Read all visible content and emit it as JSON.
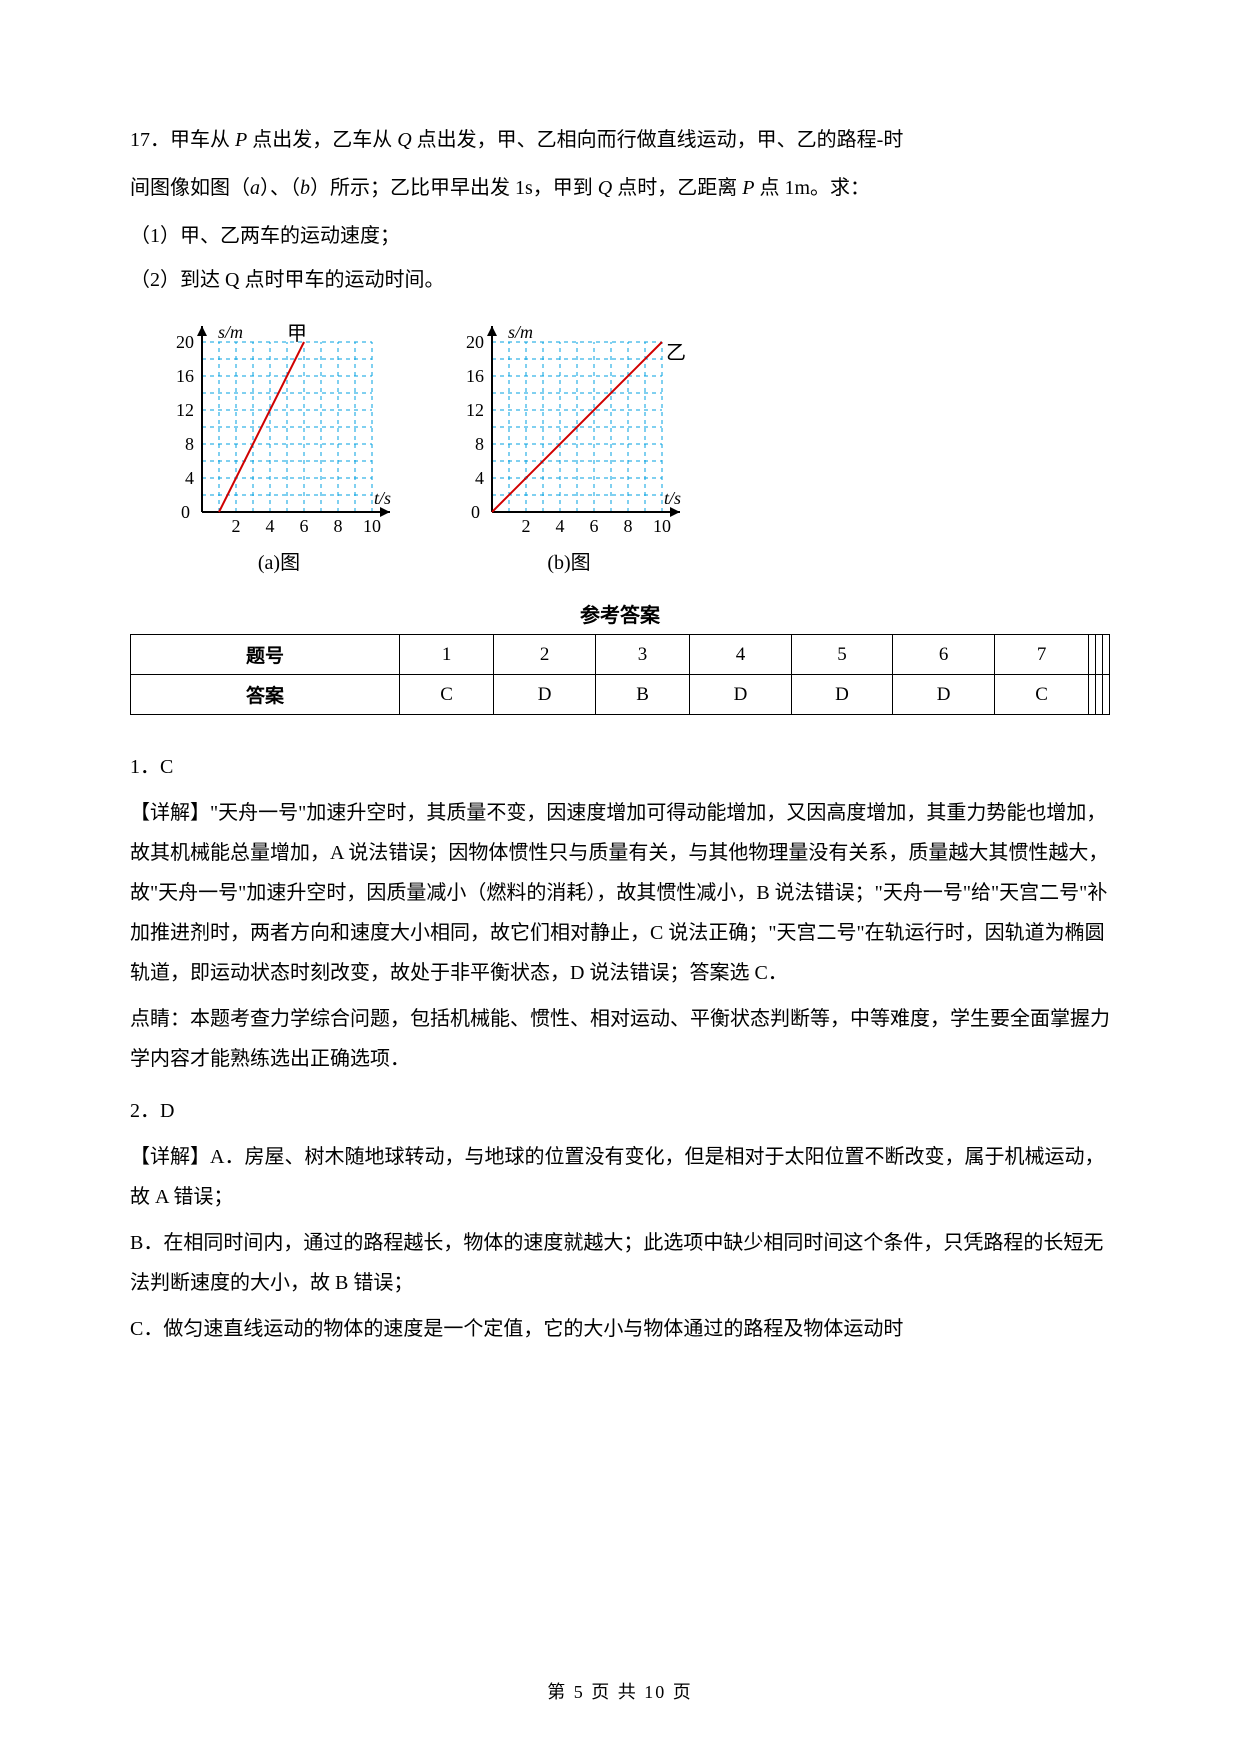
{
  "q17": {
    "line1_parts": [
      "17．甲车从 ",
      "P",
      " 点出发，乙车从 ",
      "Q",
      " 点出发，甲、乙相向而行做直线运动，甲、乙的路程-时"
    ],
    "line2_parts": [
      "间图像如图（",
      "a",
      "）、（",
      "b",
      "）所示；乙比甲早出发 1s，甲到 ",
      "Q",
      " 点时，乙距离 ",
      "P",
      " 点 1m。求："
    ],
    "sub1": "（1）甲、乙两车的运动速度；",
    "sub2_parts": [
      "（2）到达 ",
      "Q",
      " 点时甲车的运动时间。"
    ]
  },
  "charts": {
    "a_caption": "(a)图",
    "b_caption": "(b)图",
    "y_label": "s/m",
    "x_label": "t/s",
    "a_legend": "甲",
    "b_legend": "乙",
    "x_ticks": [
      2,
      4,
      6,
      8,
      10
    ],
    "y_ticks": [
      0,
      4,
      8,
      12,
      16,
      20
    ],
    "a_line": {
      "x1": 1,
      "y1": 0,
      "x2": 6,
      "y2": 20
    },
    "b_line": {
      "x1": 0,
      "y1": 0,
      "x2": 10,
      "y2": 20
    },
    "grid_color": "#00a0e0",
    "line_color": "#d00000",
    "axis_color": "#000000",
    "background": "#ffffff"
  },
  "answer_header": "参考答案",
  "answer_table": {
    "row_head": [
      "题号",
      "答案"
    ],
    "nums": [
      "1",
      "2",
      "3",
      "4",
      "5",
      "6",
      "7",
      "",
      "",
      ""
    ],
    "vals": [
      "C",
      "D",
      "B",
      "D",
      "D",
      "D",
      "C",
      "",
      "",
      ""
    ]
  },
  "expl": {
    "q1_num": "1．C",
    "q1_body": "【详解】\"天舟一号\"加速升空时，其质量不变，因速度增加可得动能增加，又因高度增加，其重力势能也增加，故其机械能总量增加，A 说法错误；因物体惯性只与质量有关，与其他物理量没有关系，质量越大其惯性越大，故\"天舟一号\"加速升空时，因质量减小（燃料的消耗），故其惯性减小，B 说法错误；\"天舟一号\"给\"天宫二号\"补加推进剂时，两者方向和速度大小相同，故它们相对静止，C 说法正确；\"天宫二号\"在轨运行时，因轨道为椭圆轨道，即运动状态时刻改变，故处于非平衡状态，D 说法错误；答案选 C．",
    "q1_tip": "点睛：本题考查力学综合问题，包括机械能、惯性、相对运动、平衡状态判断等，中等难度，学生要全面掌握力学内容才能熟练选出正确选项．",
    "q2_num": "2．D",
    "q2_body_a": "【详解】A．房屋、树木随地球转动，与地球的位置没有变化，但是相对于太阳位置不断改变，属于机械运动，故 A 错误；",
    "q2_body_b": "B．在相同时间内，通过的路程越长，物体的速度就越大；此选项中缺少相同时间这个条件，只凭路程的长短无法判断速度的大小，故 B 错误；",
    "q2_body_c": "C．做匀速直线运动的物体的速度是一个定值，它的大小与物体通过的路程及物体运动时"
  },
  "footer": "第 5 页 共 10 页"
}
